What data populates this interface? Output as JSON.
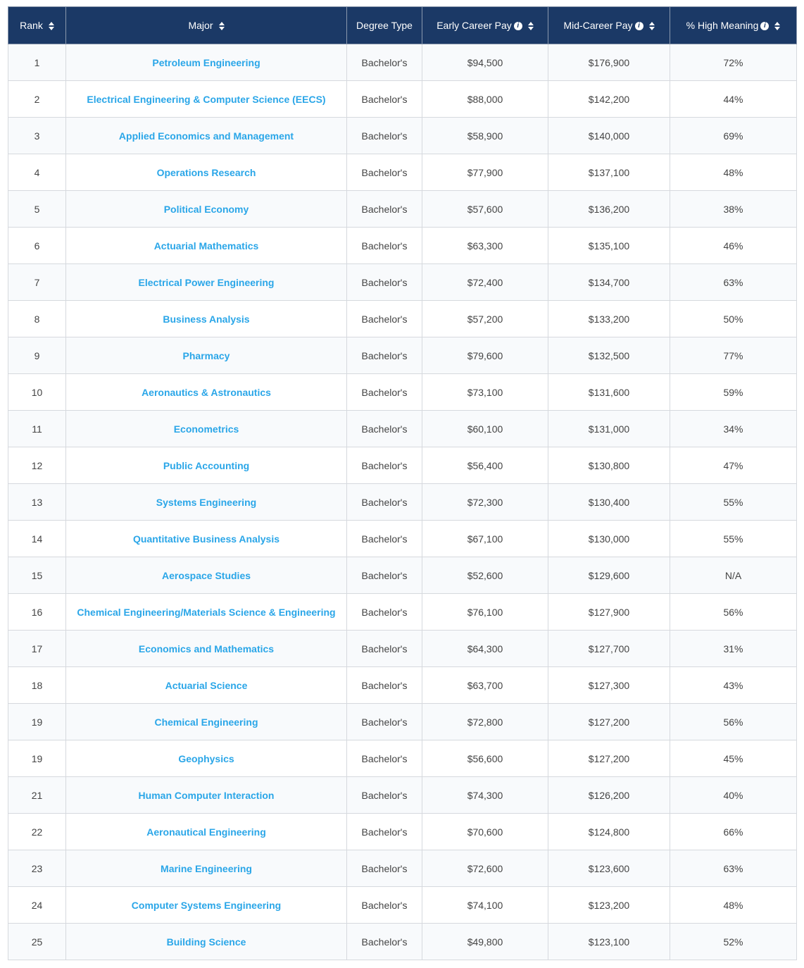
{
  "header": {
    "rank": "Rank",
    "major": "Major",
    "degree_type": "Degree Type",
    "early_pay": "Early Career Pay",
    "mid_pay": "Mid-Career Pay",
    "high_meaning": "% High Meaning",
    "info_glyph": "i"
  },
  "colors": {
    "header_bg": "#1b3966",
    "link": "#2aa6e8"
  },
  "rows": [
    {
      "rank": "1",
      "major": "Petroleum Engineering",
      "degree": "Bachelor's",
      "early": "$94,500",
      "mid": "$176,900",
      "meaning": "72%"
    },
    {
      "rank": "2",
      "major": "Electrical Engineering & Computer Science (EECS)",
      "degree": "Bachelor's",
      "early": "$88,000",
      "mid": "$142,200",
      "meaning": "44%"
    },
    {
      "rank": "3",
      "major": "Applied Economics and Management",
      "degree": "Bachelor's",
      "early": "$58,900",
      "mid": "$140,000",
      "meaning": "69%"
    },
    {
      "rank": "4",
      "major": "Operations Research",
      "degree": "Bachelor's",
      "early": "$77,900",
      "mid": "$137,100",
      "meaning": "48%"
    },
    {
      "rank": "5",
      "major": "Political Economy",
      "degree": "Bachelor's",
      "early": "$57,600",
      "mid": "$136,200",
      "meaning": "38%"
    },
    {
      "rank": "6",
      "major": "Actuarial Mathematics",
      "degree": "Bachelor's",
      "early": "$63,300",
      "mid": "$135,100",
      "meaning": "46%"
    },
    {
      "rank": "7",
      "major": "Electrical Power Engineering",
      "degree": "Bachelor's",
      "early": "$72,400",
      "mid": "$134,700",
      "meaning": "63%"
    },
    {
      "rank": "8",
      "major": "Business Analysis",
      "degree": "Bachelor's",
      "early": "$57,200",
      "mid": "$133,200",
      "meaning": "50%"
    },
    {
      "rank": "9",
      "major": "Pharmacy",
      "degree": "Bachelor's",
      "early": "$79,600",
      "mid": "$132,500",
      "meaning": "77%"
    },
    {
      "rank": "10",
      "major": "Aeronautics & Astronautics",
      "degree": "Bachelor's",
      "early": "$73,100",
      "mid": "$131,600",
      "meaning": "59%"
    },
    {
      "rank": "11",
      "major": "Econometrics",
      "degree": "Bachelor's",
      "early": "$60,100",
      "mid": "$131,000",
      "meaning": "34%"
    },
    {
      "rank": "12",
      "major": "Public Accounting",
      "degree": "Bachelor's",
      "early": "$56,400",
      "mid": "$130,800",
      "meaning": "47%"
    },
    {
      "rank": "13",
      "major": "Systems Engineering",
      "degree": "Bachelor's",
      "early": "$72,300",
      "mid": "$130,400",
      "meaning": "55%"
    },
    {
      "rank": "14",
      "major": "Quantitative Business Analysis",
      "degree": "Bachelor's",
      "early": "$67,100",
      "mid": "$130,000",
      "meaning": "55%"
    },
    {
      "rank": "15",
      "major": "Aerospace Studies",
      "degree": "Bachelor's",
      "early": "$52,600",
      "mid": "$129,600",
      "meaning": "N/A"
    },
    {
      "rank": "16",
      "major": "Chemical Engineering/Materials Science & Engineering",
      "degree": "Bachelor's",
      "early": "$76,100",
      "mid": "$127,900",
      "meaning": "56%"
    },
    {
      "rank": "17",
      "major": "Economics and Mathematics",
      "degree": "Bachelor's",
      "early": "$64,300",
      "mid": "$127,700",
      "meaning": "31%"
    },
    {
      "rank": "18",
      "major": "Actuarial Science",
      "degree": "Bachelor's",
      "early": "$63,700",
      "mid": "$127,300",
      "meaning": "43%"
    },
    {
      "rank": "19",
      "major": "Chemical Engineering",
      "degree": "Bachelor's",
      "early": "$72,800",
      "mid": "$127,200",
      "meaning": "56%"
    },
    {
      "rank": "19",
      "major": "Geophysics",
      "degree": "Bachelor's",
      "early": "$56,600",
      "mid": "$127,200",
      "meaning": "45%"
    },
    {
      "rank": "21",
      "major": "Human Computer Interaction",
      "degree": "Bachelor's",
      "early": "$74,300",
      "mid": "$126,200",
      "meaning": "40%"
    },
    {
      "rank": "22",
      "major": "Aeronautical Engineering",
      "degree": "Bachelor's",
      "early": "$70,600",
      "mid": "$124,800",
      "meaning": "66%"
    },
    {
      "rank": "23",
      "major": "Marine Engineering",
      "degree": "Bachelor's",
      "early": "$72,600",
      "mid": "$123,600",
      "meaning": "63%"
    },
    {
      "rank": "24",
      "major": "Computer Systems Engineering",
      "degree": "Bachelor's",
      "early": "$74,100",
      "mid": "$123,200",
      "meaning": "48%"
    },
    {
      "rank": "25",
      "major": "Building Science",
      "degree": "Bachelor's",
      "early": "$49,800",
      "mid": "$123,100",
      "meaning": "52%"
    }
  ]
}
